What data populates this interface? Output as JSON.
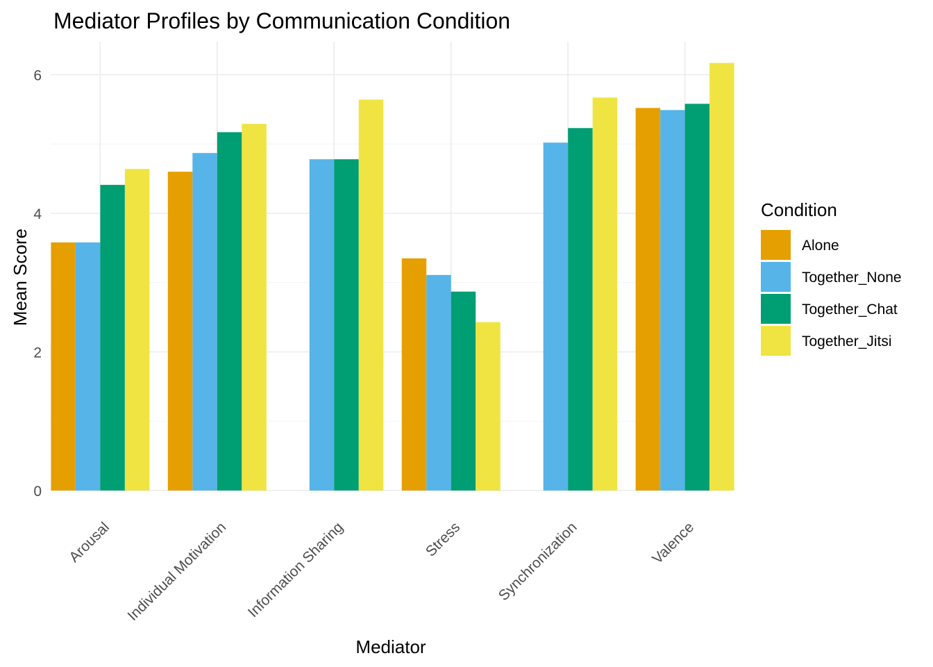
{
  "chart_data": {
    "type": "bar",
    "title": "Mediator Profiles by Communication Condition",
    "xlabel": "Mediator",
    "ylabel": "Mean Score",
    "categories": [
      "Arousal",
      "Individual Motivation",
      "Information Sharing",
      "Stress",
      "Synchronization",
      "Valence"
    ],
    "ylim": [
      0,
      6.3
    ],
    "yticks": [
      0,
      2,
      4,
      6
    ],
    "grid": true,
    "legend": {
      "title": "Condition",
      "position": "right"
    },
    "series": [
      {
        "name": "Alone",
        "color": "#E69F00",
        "values": [
          3.58,
          4.6,
          null,
          3.35,
          null,
          5.52
        ]
      },
      {
        "name": "Together_None",
        "color": "#56B4E9",
        "values": [
          3.58,
          4.87,
          4.78,
          3.11,
          5.02,
          5.49
        ]
      },
      {
        "name": "Together_Chat",
        "color": "#009E73",
        "values": [
          4.41,
          5.17,
          4.78,
          2.87,
          5.23,
          5.58
        ]
      },
      {
        "name": "Together_Jitsi",
        "color": "#F0E442",
        "values": [
          4.64,
          5.29,
          5.64,
          2.43,
          5.67,
          6.17
        ]
      }
    ]
  }
}
